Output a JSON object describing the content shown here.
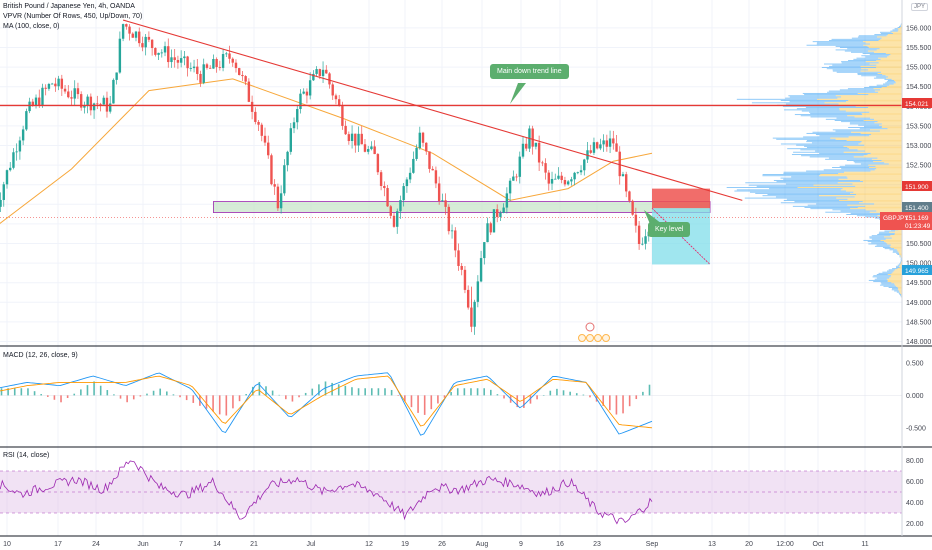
{
  "header": {
    "symbol_line": "British Pound / Japanese Yen, 4h, OANDA",
    "vpvr_line": "VPVR (Number Of Rows, 450, Up/Down, 70)",
    "ma_line": "MA (100, close, 0)",
    "currency_badge": "JPY"
  },
  "annotations": {
    "trend_label": "Main down trend line",
    "key_label": "Key level"
  },
  "price_tags": {
    "resistance": "154.021",
    "stop": "151.900",
    "entry": "151.400",
    "symbol": "GBPJPY",
    "current": "151.169",
    "countdown": "01:23:49",
    "target": "149.965"
  },
  "indicators": {
    "macd_label": "MACD (12, 26, close, 9)",
    "rsi_label": "RSI (14, close)"
  },
  "colors": {
    "candle_up": "#26a69a",
    "candle_down": "#ef5350",
    "trendline": "#e53935",
    "ma": "#f7a73a",
    "vp_up": "#2196f3",
    "vp_down": "#f9c03a",
    "key_zone": "#c8e6c9",
    "stop_zone": "#ef5350",
    "target_zone": "#80deea",
    "macd_line": "#2196f3",
    "signal_line": "#ff9800",
    "rsi_line": "#9c27b0",
    "rsi_band": "#e1bee7"
  },
  "chart_data": [
    {
      "type": "candlestick",
      "title": "British Pound / Japanese Yen, 4h, OANDA",
      "ylim": [
        148.0,
        156.3
      ],
      "y_ticks": [
        148.0,
        148.5,
        149.0,
        149.5,
        150.0,
        150.5,
        151.0,
        151.5,
        152.0,
        152.5,
        153.0,
        153.5,
        154.0,
        154.5,
        155.0,
        155.5,
        156.0
      ],
      "x_tick_labels": [
        "10",
        "17",
        "24",
        "Jun",
        "7",
        "14",
        "21",
        "Jul",
        "12",
        "19",
        "26",
        "Aug",
        "9",
        "16",
        "23",
        "Sep",
        "13",
        "20",
        "12:00",
        "Oct",
        "11"
      ],
      "price_path": [
        [
          "May 8",
          151.3
        ],
        [
          "May 13",
          153.8
        ],
        [
          "May 17",
          154.6
        ],
        [
          "May 21",
          154.2
        ],
        [
          "May 26",
          154.0
        ],
        [
          "May 28",
          156.1
        ],
        [
          "Jun 1",
          155.6
        ],
        [
          "Jun 5",
          155.2
        ],
        [
          "Jun 9",
          154.8
        ],
        [
          "Jun 14",
          155.3
        ],
        [
          "Jun 18",
          153.6
        ],
        [
          "Jun 21",
          151.5
        ],
        [
          "Jun 24",
          154.1
        ],
        [
          "Jun 28",
          155.0
        ],
        [
          "Jul 2",
          153.3
        ],
        [
          "Jul 6",
          152.7
        ],
        [
          "Jul 9",
          151.1
        ],
        [
          "Jul 13",
          153.2
        ],
        [
          "Jul 16",
          151.8
        ],
        [
          "Jul 20",
          149.5
        ],
        [
          "Jul 21",
          148.6
        ],
        [
          "Jul 23",
          150.7
        ],
        [
          "Jul 27",
          151.9
        ],
        [
          "Jul 30",
          153.3
        ],
        [
          "Aug 2",
          152.0
        ],
        [
          "Aug 5",
          152.2
        ],
        [
          "Aug 9",
          152.9
        ],
        [
          "Aug 12",
          153.1
        ],
        [
          "Aug 14",
          151.7
        ],
        [
          "Aug 16",
          150.5
        ],
        [
          "Aug 18",
          151.2
        ]
      ],
      "moving_average": {
        "name": "MA (100, close, 0)",
        "path": [
          [
            "May 8",
            150.9
          ],
          [
            "May 20",
            152.4
          ],
          [
            "Jun 1",
            154.4
          ],
          [
            "Jun 14",
            154.7
          ],
          [
            "Jul 1",
            153.7
          ],
          [
            "Jul 15",
            152.8
          ],
          [
            "Jul 27",
            151.6
          ],
          [
            "Aug 5",
            151.9
          ],
          [
            "Aug 12",
            152.6
          ],
          [
            "Aug 18",
            152.8
          ]
        ]
      },
      "trendline": {
        "label": "Main down trend line",
        "from": [
          "May 28",
          156.2
        ],
        "to": [
          "Sep 1",
          151.6
        ]
      },
      "horizontal_levels": [
        {
          "value": 154.021,
          "label": "154.021"
        }
      ],
      "key_level_zone": {
        "label": "Key level",
        "from_value": 151.29,
        "to_value": 151.57,
        "from_date": "Jun 11",
        "to_date": "Aug 27"
      },
      "short_position": {
        "entry": 151.4,
        "stop": 151.9,
        "target": 149.965
      },
      "price_labels": {
        "current": 151.169,
        "stop": 151.9,
        "entry": 151.4,
        "target": 149.965,
        "resistance": 154.021
      }
    },
    {
      "type": "bar",
      "title": "MACD (12, 26, close, 9)",
      "ylim": [
        -0.75,
        0.7
      ],
      "y_ticks": [
        0.5,
        0.0,
        -0.5
      ],
      "series": [
        {
          "name": "MACD",
          "values": [
            0.1,
            0.2,
            0.15,
            0.3,
            0.15,
            0.35,
            0.1,
            -0.6,
            0.2,
            -0.35,
            0.1,
            0.3,
            0.35,
            -0.65,
            0.2,
            0.3,
            -0.2,
            0.3,
            0.2,
            -0.6,
            -0.4
          ]
        },
        {
          "name": "Signal",
          "values": [
            0.05,
            0.15,
            0.2,
            0.2,
            0.2,
            0.3,
            0.15,
            -0.45,
            0.1,
            -0.3,
            0.0,
            0.25,
            0.3,
            -0.5,
            0.15,
            0.25,
            -0.1,
            0.25,
            0.2,
            -0.45,
            -0.5
          ]
        }
      ]
    },
    {
      "type": "line",
      "title": "RSI (14, close)",
      "ylim": [
        10,
        90
      ],
      "y_ticks": [
        80.0,
        60.0,
        40.0,
        20.0
      ],
      "band": [
        30,
        70
      ],
      "series": [
        {
          "name": "RSI",
          "values": [
            60,
            48,
            56,
            62,
            52,
            82,
            55,
            47,
            60,
            25,
            55,
            63,
            50,
            58,
            48,
            27,
            55,
            52,
            62,
            58,
            48,
            60,
            32,
            20,
            42
          ]
        }
      ]
    }
  ]
}
